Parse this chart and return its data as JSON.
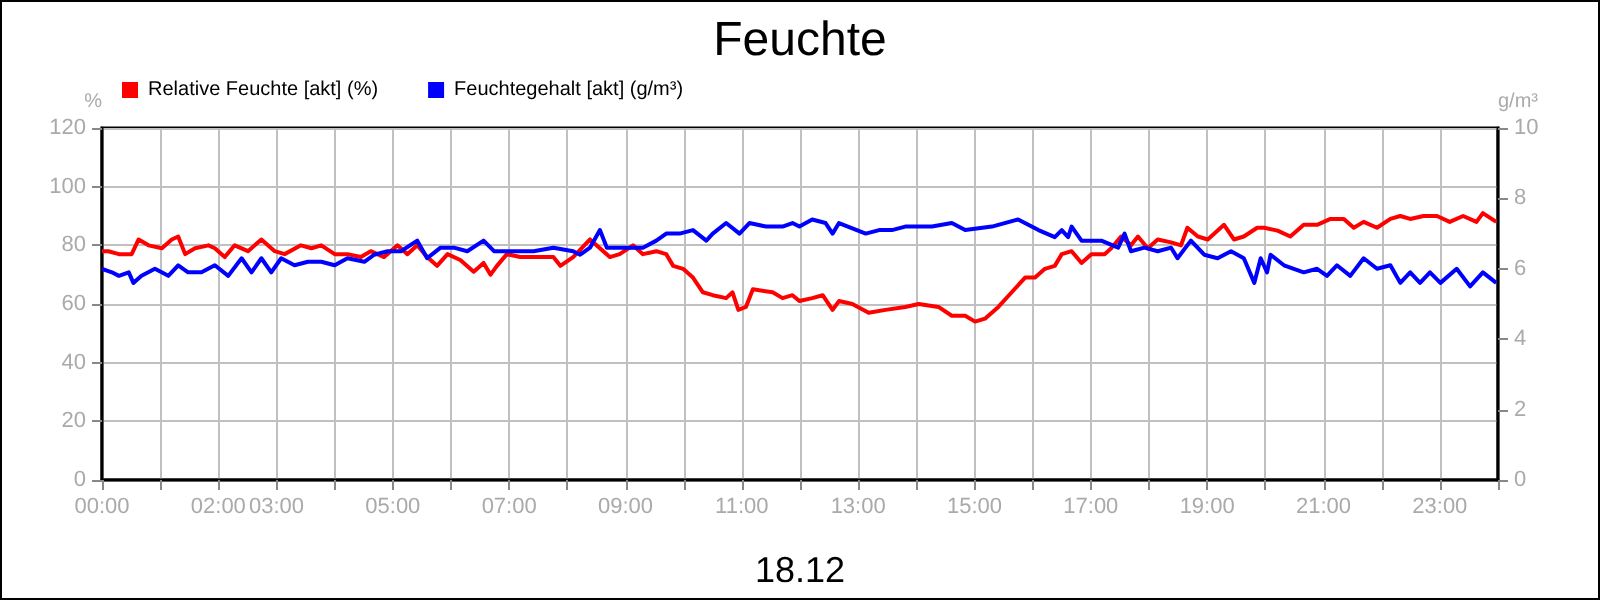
{
  "chart_data": {
    "type": "line",
    "title": "Feuchte",
    "xlabel": "18.12",
    "ylabel": "%",
    "y2label": "g/m³",
    "xlim": [
      0,
      24
    ],
    "xticks": [
      {
        "value": 0,
        "label": "00:00"
      },
      {
        "value": 1,
        "label": null
      },
      {
        "value": 2,
        "label": "02:00"
      },
      {
        "value": 3,
        "label": "03:00"
      },
      {
        "value": 4,
        "label": null
      },
      {
        "value": 5,
        "label": "05:00"
      },
      {
        "value": 6,
        "label": null
      },
      {
        "value": 7,
        "label": "07:00"
      },
      {
        "value": 8,
        "label": null
      },
      {
        "value": 9,
        "label": "09:00"
      },
      {
        "value": 10,
        "label": null
      },
      {
        "value": 11,
        "label": "11:00"
      },
      {
        "value": 12,
        "label": null
      },
      {
        "value": 13,
        "label": "13:00"
      },
      {
        "value": 14,
        "label": null
      },
      {
        "value": 15,
        "label": "15:00"
      },
      {
        "value": 16,
        "label": null
      },
      {
        "value": 17,
        "label": "17:00"
      },
      {
        "value": 18,
        "label": null
      },
      {
        "value": 19,
        "label": "19:00"
      },
      {
        "value": 20,
        "label": null
      },
      {
        "value": 21,
        "label": "21:00"
      },
      {
        "value": 22,
        "label": null
      },
      {
        "value": 23,
        "label": "23:00"
      },
      {
        "value": 24,
        "label": null
      }
    ],
    "ylim": [
      0,
      120
    ],
    "yticks": [
      0,
      20,
      40,
      60,
      80,
      100,
      120
    ],
    "y2lim": [
      0,
      10
    ],
    "y2ticks": [
      0,
      2,
      4,
      6,
      8,
      10
    ],
    "grid": true,
    "legend": "top left",
    "marker": "none",
    "line_style": "solid",
    "series": [
      {
        "name": "Relative Feuchte [akt] (%)",
        "color": "#ff0000",
        "x": [
          0,
          0.11,
          0.29,
          0.51,
          0.63,
          0.8,
          1.03,
          1.2,
          1.31,
          1.43,
          1.6,
          1.83,
          1.94,
          2.11,
          2.28,
          2.51,
          2.74,
          2.97,
          3.14,
          3.42,
          3.6,
          3.77,
          4.0,
          4.22,
          4.45,
          4.62,
          4.85,
          5.08,
          5.25,
          5.42,
          5.59,
          5.76,
          5.94,
          6.16,
          6.39,
          6.56,
          6.68,
          6.79,
          6.96,
          7.19,
          7.42,
          7.76,
          7.88,
          8.1,
          8.39,
          8.56,
          8.73,
          8.9,
          9.13,
          9.3,
          9.53,
          9.7,
          9.82,
          9.99,
          10.16,
          10.33,
          10.5,
          10.73,
          10.84,
          10.94,
          11.07,
          11.19,
          11.53,
          11.7,
          11.87,
          11.99,
          12.21,
          12.39,
          12.56,
          12.67,
          12.9,
          13.18,
          13.47,
          13.81,
          14.04,
          14.38,
          14.61,
          14.84,
          15.01,
          15.18,
          15.41,
          15.64,
          15.87,
          16.04,
          16.21,
          16.38,
          16.5,
          16.67,
          16.84,
          17.01,
          17.24,
          17.35,
          17.52,
          17.69,
          17.81,
          17.98,
          18.15,
          18.38,
          18.55,
          18.66,
          18.84,
          19.01,
          19.29,
          19.46,
          19.63,
          19.86,
          19.98,
          20.21,
          20.43,
          20.66,
          20.89,
          21.12,
          21.35,
          21.52,
          21.69,
          21.92,
          22.15,
          22.32,
          22.49,
          22.72,
          22.95,
          23.17,
          23.4,
          23.63,
          23.74,
          23.97
        ],
        "values": [
          78,
          78,
          77,
          77,
          82,
          80,
          79,
          82,
          83,
          77,
          79,
          80,
          79,
          76,
          80,
          78,
          82,
          78,
          77,
          80,
          79,
          80,
          77,
          77,
          76,
          78,
          76,
          80,
          77,
          80,
          76,
          73,
          77,
          75,
          71,
          74,
          70,
          73,
          77,
          76,
          76,
          76,
          73,
          76,
          82,
          79,
          76,
          77,
          80,
          77,
          78,
          77,
          73,
          72,
          69,
          64,
          63,
          62,
          64,
          58,
          59,
          65,
          64,
          62,
          63,
          61,
          62,
          63,
          58,
          61,
          60,
          57,
          58,
          59,
          60,
          59,
          56,
          56,
          54,
          55,
          59,
          64,
          69,
          69,
          72,
          73,
          77,
          78,
          74,
          77,
          77,
          79,
          83,
          80,
          83,
          79,
          82,
          81,
          80,
          86,
          83,
          82,
          87,
          82,
          83,
          86,
          86,
          85,
          83,
          87,
          87,
          89,
          89,
          86,
          88,
          86,
          89,
          90,
          89,
          90,
          90,
          88,
          90,
          88,
          91,
          88
        ]
      },
      {
        "name": "Feuchtegehalt [akt] (g/m³)",
        "color": "#0000ff",
        "axis": "y2",
        "x": [
          0,
          0.17,
          0.29,
          0.46,
          0.54,
          0.68,
          0.91,
          1.14,
          1.31,
          1.48,
          1.71,
          1.94,
          2.17,
          2.4,
          2.57,
          2.74,
          2.91,
          3.08,
          3.31,
          3.54,
          3.77,
          4.0,
          4.22,
          4.51,
          4.68,
          4.91,
          5.14,
          5.42,
          5.59,
          5.82,
          6.05,
          6.28,
          6.56,
          6.74,
          7.08,
          7.42,
          7.76,
          8.1,
          8.22,
          8.39,
          8.56,
          8.68,
          8.9,
          9.13,
          9.3,
          9.53,
          9.7,
          9.93,
          10.16,
          10.39,
          10.5,
          10.73,
          10.96,
          11.13,
          11.42,
          11.7,
          11.87,
          11.99,
          12.21,
          12.44,
          12.56,
          12.67,
          13.13,
          13.36,
          13.58,
          13.81,
          14.27,
          14.61,
          14.84,
          15.3,
          15.75,
          16.1,
          16.38,
          16.5,
          16.61,
          16.67,
          16.84,
          17.18,
          17.47,
          17.58,
          17.69,
          17.92,
          18.15,
          18.38,
          18.49,
          18.72,
          18.95,
          19.18,
          19.41,
          19.63,
          19.81,
          19.92,
          20.03,
          20.09,
          20.32,
          20.66,
          20.89,
          21.06,
          21.23,
          21.46,
          21.69,
          21.92,
          22.15,
          22.32,
          22.49,
          22.66,
          22.83,
          23.01,
          23.29,
          23.52,
          23.74,
          23.97
        ],
        "values": [
          6.0,
          5.9,
          5.8,
          5.9,
          5.6,
          5.8,
          6.0,
          5.8,
          6.1,
          5.9,
          5.9,
          6.1,
          5.8,
          6.3,
          5.9,
          6.3,
          5.9,
          6.3,
          6.1,
          6.2,
          6.2,
          6.1,
          6.3,
          6.2,
          6.4,
          6.5,
          6.5,
          6.8,
          6.3,
          6.6,
          6.6,
          6.5,
          6.8,
          6.5,
          6.5,
          6.5,
          6.6,
          6.5,
          6.4,
          6.6,
          7.1,
          6.6,
          6.6,
          6.6,
          6.6,
          6.8,
          7.0,
          7.0,
          7.1,
          6.8,
          7.0,
          7.3,
          7.0,
          7.3,
          7.2,
          7.2,
          7.3,
          7.2,
          7.4,
          7.3,
          7.0,
          7.3,
          7.0,
          7.1,
          7.1,
          7.2,
          7.2,
          7.3,
          7.1,
          7.2,
          7.4,
          7.1,
          6.9,
          7.1,
          6.9,
          7.2,
          6.8,
          6.8,
          6.6,
          7.0,
          6.5,
          6.6,
          6.5,
          6.6,
          6.3,
          6.8,
          6.4,
          6.3,
          6.5,
          6.3,
          5.6,
          6.3,
          5.9,
          6.4,
          6.1,
          5.9,
          6.0,
          5.8,
          6.1,
          5.8,
          6.3,
          6.0,
          6.1,
          5.6,
          5.9,
          5.6,
          5.9,
          5.6,
          6.0,
          5.5,
          5.9,
          5.6
        ]
      }
    ]
  }
}
